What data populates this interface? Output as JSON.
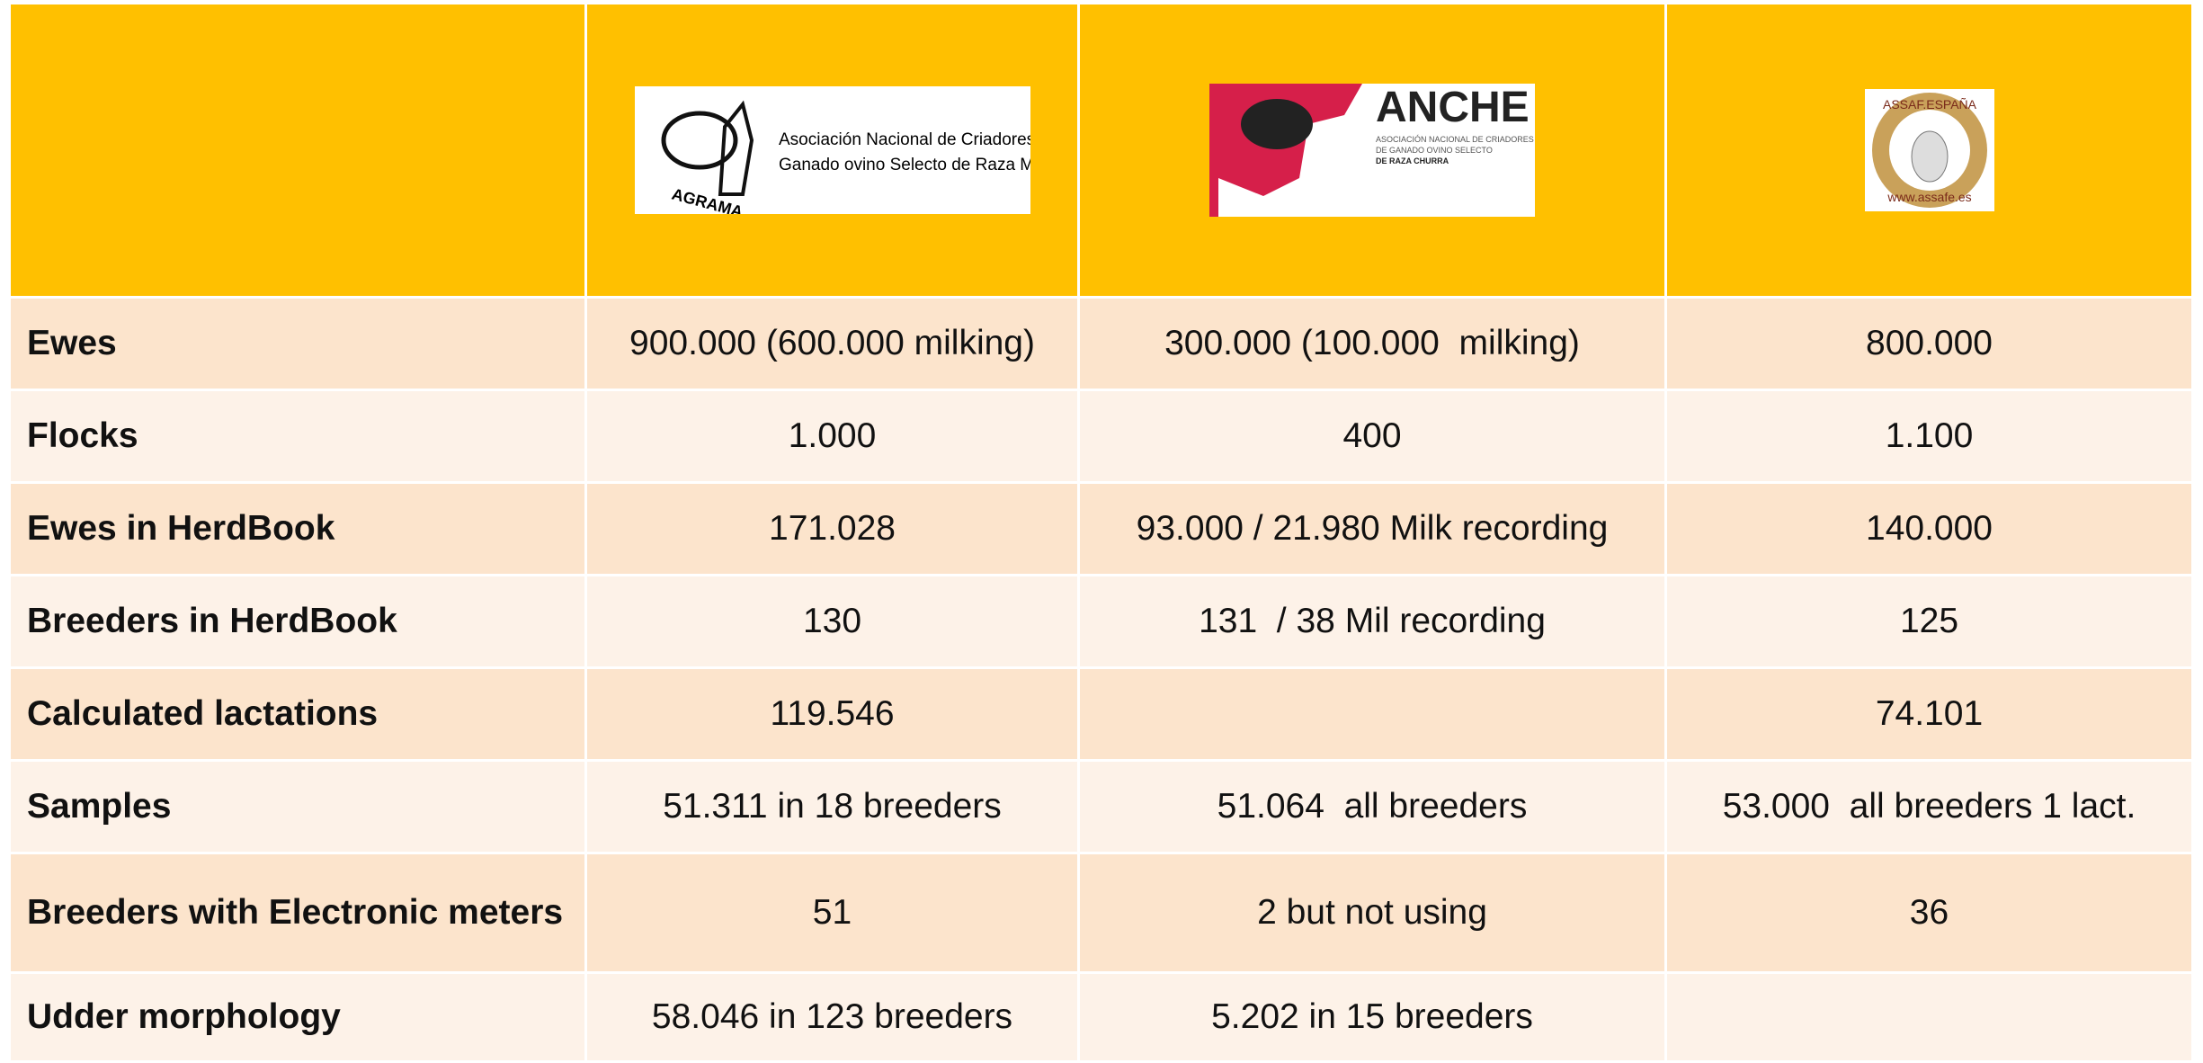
{
  "header": {
    "logos": [
      {
        "name": "AGRAMA",
        "lines": [
          "Asociación Nacional de Criadores de",
          "Ganado ovino Selecto de Raza Manchega"
        ]
      },
      {
        "name": "ANCHE",
        "lines": [
          "ASOCIACIÓN NACIONAL DE CRIADORES",
          "DE GANADO OVINO SELECTO",
          "DE RAZA CHURRA"
        ]
      },
      {
        "name": "ASSAF.ESPAÑA",
        "lines": [
          "www.assafe.es"
        ]
      }
    ]
  },
  "table": {
    "rows": [
      [
        "Ewes",
        "900.000 (600.000 milking)",
        "300.000 (100.000  milking)",
        "800.000"
      ],
      [
        "Flocks",
        "1.000",
        "400",
        "1.100"
      ],
      [
        "Ewes in HerdBook",
        "171.028",
        "93.000 / 21.980 Milk recording",
        "140.000"
      ],
      [
        "Breeders in HerdBook",
        "130",
        "131  / 38 Mil recording",
        "125"
      ],
      [
        "Calculated lactations",
        "119.546",
        null,
        "74.101"
      ],
      [
        "Samples",
        "51.311 in 18 breeders",
        "51.064  all breeders",
        "53.000  all breeders 1 lact."
      ],
      [
        "Breeders with Electronic meters",
        "51",
        "2 but not using",
        "36"
      ],
      [
        "Udder morphology",
        "58.046 in 123 breeders",
        "5.202 in 15 breeders",
        null
      ]
    ]
  }
}
